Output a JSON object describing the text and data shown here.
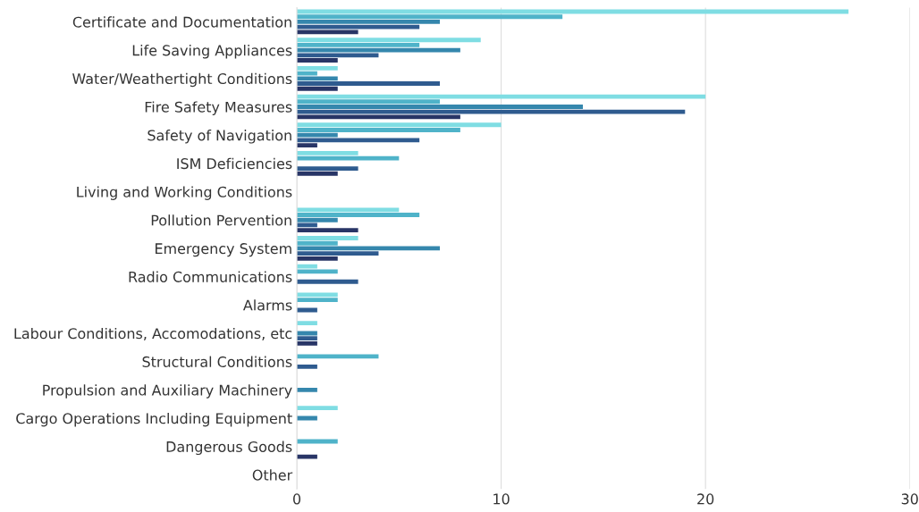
{
  "chart_data": {
    "type": "bar",
    "orientation": "horizontal",
    "categories": [
      "Certificate and Documentation",
      "Life Saving Appliances",
      "Water/Weathertight Conditions",
      "Fire Safety Measures",
      "Safety of Navigation",
      "ISM Deficiencies",
      "Living and Working Conditions",
      "Pollution Pervention",
      "Emergency System",
      "Radio Communications",
      "Alarms",
      "Labour Conditions, Accomodations, etc",
      "Structural Conditions",
      "Propulsion and Auxiliary Machinery",
      "Cargo Operations Including Equipment",
      "Dangerous Goods",
      "Other"
    ],
    "series": [
      {
        "color": "#7fdde3",
        "values": [
          27,
          9,
          2,
          20,
          10,
          3,
          0,
          5,
          3,
          1,
          2,
          1,
          0,
          0,
          2,
          0,
          0
        ]
      },
      {
        "color": "#4fb3c9",
        "values": [
          13,
          6,
          1,
          7,
          8,
          5,
          0,
          6,
          2,
          2,
          2,
          0,
          4,
          0,
          0,
          2,
          0
        ]
      },
      {
        "color": "#3587ad",
        "values": [
          7,
          8,
          2,
          14,
          2,
          0,
          0,
          2,
          7,
          0,
          0,
          1,
          0,
          1,
          1,
          0,
          0
        ]
      },
      {
        "color": "#2f5b8f",
        "values": [
          6,
          4,
          7,
          19,
          6,
          3,
          0,
          1,
          4,
          3,
          1,
          1,
          1,
          0,
          0,
          0,
          0
        ]
      },
      {
        "color": "#283566",
        "values": [
          3,
          2,
          2,
          8,
          1,
          2,
          0,
          3,
          2,
          0,
          0,
          1,
          0,
          0,
          0,
          1,
          0
        ]
      }
    ],
    "xlim": [
      0,
      30
    ],
    "xticks": [
      0,
      10,
      20,
      30
    ],
    "grid": "x",
    "legend": false
  }
}
